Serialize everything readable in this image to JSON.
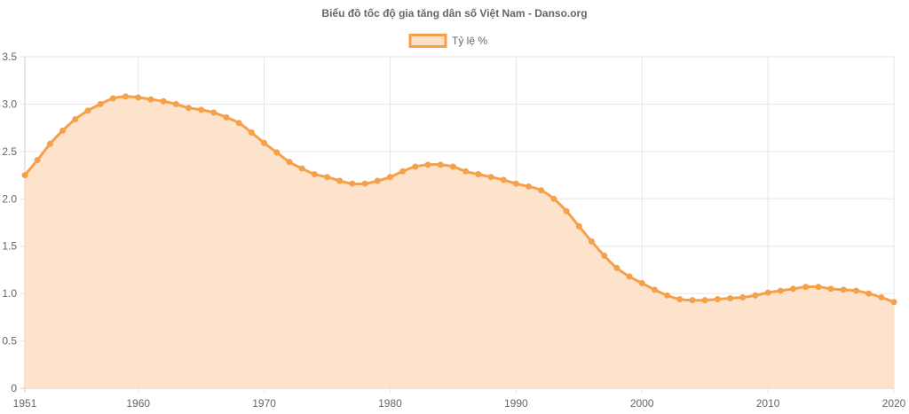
{
  "chart_data": {
    "type": "area",
    "title": "Biểu đồ tốc độ gia tăng dân số Việt Nam - Danso.org",
    "legend": {
      "placement": "top-center"
    },
    "grid": true,
    "xlabel": "",
    "ylabel": "",
    "xlim": [
      1951,
      2020
    ],
    "ylim": [
      0,
      3.5
    ],
    "x_ticks": [
      "1951",
      "1960",
      "1970",
      "1980",
      "1990",
      "2000",
      "2010",
      "2020"
    ],
    "y_ticks": [
      "0",
      "0.5",
      "1.0",
      "1.5",
      "2.0",
      "2.5",
      "3.0",
      "3.5"
    ],
    "x": [
      1951,
      1952,
      1953,
      1954,
      1955,
      1956,
      1957,
      1958,
      1959,
      1960,
      1961,
      1962,
      1963,
      1964,
      1965,
      1966,
      1967,
      1968,
      1969,
      1970,
      1971,
      1972,
      1973,
      1974,
      1975,
      1976,
      1977,
      1978,
      1979,
      1980,
      1981,
      1982,
      1983,
      1984,
      1985,
      1986,
      1987,
      1988,
      1989,
      1990,
      1991,
      1992,
      1993,
      1994,
      1995,
      1996,
      1997,
      1998,
      1999,
      2000,
      2001,
      2002,
      2003,
      2004,
      2005,
      2006,
      2007,
      2008,
      2009,
      2010,
      2011,
      2012,
      2013,
      2014,
      2015,
      2016,
      2017,
      2018,
      2019,
      2020
    ],
    "series": [
      {
        "name": "Tỷ lệ %",
        "line_color": "#f5a04a",
        "fill_color": "#fde0c5",
        "values": [
          2.25,
          2.41,
          2.58,
          2.72,
          2.84,
          2.93,
          3.0,
          3.06,
          3.08,
          3.07,
          3.05,
          3.03,
          3.0,
          2.96,
          2.94,
          2.91,
          2.86,
          2.8,
          2.7,
          2.59,
          2.49,
          2.39,
          2.32,
          2.26,
          2.23,
          2.19,
          2.16,
          2.16,
          2.19,
          2.23,
          2.29,
          2.34,
          2.36,
          2.36,
          2.34,
          2.29,
          2.26,
          2.23,
          2.2,
          2.16,
          2.13,
          2.09,
          2.0,
          1.87,
          1.71,
          1.55,
          1.4,
          1.27,
          1.18,
          1.11,
          1.04,
          0.98,
          0.94,
          0.93,
          0.93,
          0.94,
          0.95,
          0.96,
          0.98,
          1.01,
          1.03,
          1.05,
          1.07,
          1.07,
          1.05,
          1.04,
          1.03,
          1.0,
          0.96,
          0.91
        ]
      }
    ]
  }
}
